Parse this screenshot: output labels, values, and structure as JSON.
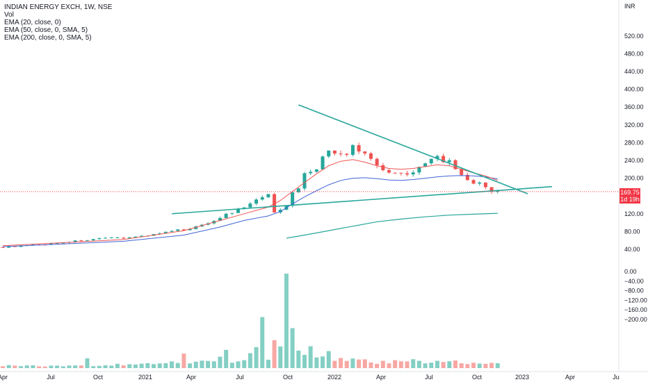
{
  "legend": {
    "symbol": "INDIAN ENERGY EXCH, 1W, NSE",
    "volume": "Vol",
    "ema1": "EMA (20, close, 0)",
    "ema2": "EMA (50, close, 0, SMA, 5)",
    "ema3": "EMA (200, close, 0, SMA, 5)"
  },
  "price_axis": {
    "currency": "INR",
    "last_price": "169.75",
    "countdown": "1d 19h"
  },
  "colors": {
    "up": "#26a69a",
    "down": "#ef5350",
    "up_vol": "#84cfc4",
    "down_vol": "#f7a8a4",
    "ema20": "#ef5350",
    "ema50": "#3f63d6",
    "ema200": "#26a69a",
    "trendline": "#26a69a",
    "price_line": "#f23645"
  },
  "chart_data": {
    "type": "candlestick",
    "x_axis_labels": [
      "Apr",
      "Jul",
      "Oct",
      "2021",
      "Apr",
      "Jul",
      "Oct",
      "2022",
      "Apr",
      "Jul",
      "Oct",
      "2023",
      "Apr",
      "Ju"
    ],
    "y_axis_labels": [
      "520.00",
      "480.00",
      "440.00",
      "400.00",
      "360.00",
      "320.00",
      "280.00",
      "240.00",
      "200.00",
      "120.00",
      "80.00",
      "40.00",
      "0.00",
      "−40.00",
      "−80.00",
      "−120.00",
      "−160.00",
      "−200.00"
    ],
    "y_axis_ticks": [
      520,
      480,
      440,
      400,
      360,
      320,
      280,
      240,
      200,
      120,
      80,
      40,
      0,
      -40,
      -80,
      -120,
      -160,
      -200
    ],
    "last_price": 169.75,
    "price_path": [
      [
        0,
        45
      ],
      [
        6,
        50
      ],
      [
        13,
        60
      ],
      [
        18,
        65
      ],
      [
        22,
        68
      ],
      [
        28,
        80
      ],
      [
        32,
        90
      ],
      [
        34,
        100
      ],
      [
        37,
        118
      ],
      [
        39,
        128
      ],
      [
        41,
        140
      ],
      [
        42,
        152
      ],
      [
        44,
        160
      ],
      [
        45,
        125
      ],
      [
        47,
        140
      ],
      [
        48,
        165
      ],
      [
        49,
        180
      ],
      [
        50,
        210
      ],
      [
        52,
        225
      ],
      [
        54,
        262
      ],
      [
        56,
        255
      ],
      [
        57,
        248
      ],
      [
        58,
        270
      ],
      [
        61,
        245
      ],
      [
        62,
        230
      ],
      [
        64,
        215
      ],
      [
        66,
        210
      ],
      [
        68,
        218
      ],
      [
        70,
        230
      ],
      [
        71,
        238
      ],
      [
        72,
        248
      ],
      [
        74,
        235
      ],
      [
        75,
        215
      ],
      [
        76,
        202
      ],
      [
        78,
        190
      ],
      [
        80,
        182
      ],
      [
        81,
        174
      ],
      [
        82,
        170
      ]
    ],
    "volume_path": [
      [
        0,
        12
      ],
      [
        8,
        10
      ],
      [
        16,
        12
      ],
      [
        20,
        18
      ],
      [
        24,
        22
      ],
      [
        30,
        28
      ],
      [
        36,
        45
      ],
      [
        38,
        30
      ],
      [
        40,
        35
      ],
      [
        42,
        125
      ],
      [
        44,
        55
      ],
      [
        45,
        80
      ],
      [
        46,
        100
      ],
      [
        47,
        390
      ],
      [
        48,
        170
      ],
      [
        49,
        85
      ],
      [
        52,
        55
      ],
      [
        54,
        45
      ],
      [
        57,
        40
      ],
      [
        60,
        35
      ],
      [
        63,
        25
      ],
      [
        66,
        40
      ],
      [
        68,
        35
      ],
      [
        70,
        30
      ],
      [
        72,
        28
      ],
      [
        74,
        35
      ],
      [
        75,
        30
      ],
      [
        78,
        22
      ],
      [
        82,
        20
      ]
    ],
    "volume_spikes": [
      [
        14,
        40
      ],
      [
        30,
        60
      ],
      [
        37,
        75
      ],
      [
        43,
        210
      ],
      [
        45,
        115
      ],
      [
        47,
        390
      ],
      [
        51,
        90
      ],
      [
        54,
        70
      ],
      [
        63,
        30
      ],
      [
        69,
        30
      ]
    ],
    "ema20": [
      [
        0,
        48
      ],
      [
        10,
        55
      ],
      [
        20,
        62
      ],
      [
        30,
        82
      ],
      [
        36,
        105
      ],
      [
        40,
        120
      ],
      [
        44,
        135
      ],
      [
        46,
        150
      ],
      [
        48,
        170
      ],
      [
        50,
        190
      ],
      [
        52,
        210
      ],
      [
        54,
        228
      ],
      [
        56,
        238
      ],
      [
        58,
        242
      ],
      [
        60,
        236
      ],
      [
        62,
        228
      ],
      [
        64,
        222
      ],
      [
        66,
        220
      ],
      [
        68,
        222
      ],
      [
        70,
        226
      ],
      [
        72,
        230
      ],
      [
        74,
        228
      ],
      [
        76,
        220
      ],
      [
        78,
        212
      ],
      [
        80,
        205
      ],
      [
        82,
        195
      ]
    ],
    "ema50": [
      [
        0,
        46
      ],
      [
        10,
        52
      ],
      [
        20,
        58
      ],
      [
        30,
        72
      ],
      [
        36,
        90
      ],
      [
        40,
        105
      ],
      [
        44,
        115
      ],
      [
        46,
        125
      ],
      [
        48,
        142
      ],
      [
        50,
        158
      ],
      [
        52,
        172
      ],
      [
        54,
        185
      ],
      [
        56,
        195
      ],
      [
        58,
        200
      ],
      [
        60,
        201
      ],
      [
        62,
        199
      ],
      [
        64,
        196
      ],
      [
        66,
        195
      ],
      [
        68,
        197
      ],
      [
        70,
        200
      ],
      [
        72,
        203
      ],
      [
        74,
        205
      ],
      [
        76,
        206
      ],
      [
        78,
        205
      ],
      [
        80,
        203
      ],
      [
        82,
        198
      ]
    ],
    "ema200": [
      [
        47,
        65
      ],
      [
        50,
        72
      ],
      [
        54,
        82
      ],
      [
        58,
        92
      ],
      [
        62,
        102
      ],
      [
        66,
        108
      ],
      [
        70,
        113
      ],
      [
        74,
        117
      ],
      [
        78,
        119
      ],
      [
        82,
        121
      ]
    ],
    "trendline_upper": [
      [
        49,
        365
      ],
      [
        87,
        165
      ]
    ],
    "trendline_lower": [
      [
        28,
        120
      ],
      [
        91,
        181
      ]
    ],
    "x_start": 0,
    "x_end": 82
  }
}
